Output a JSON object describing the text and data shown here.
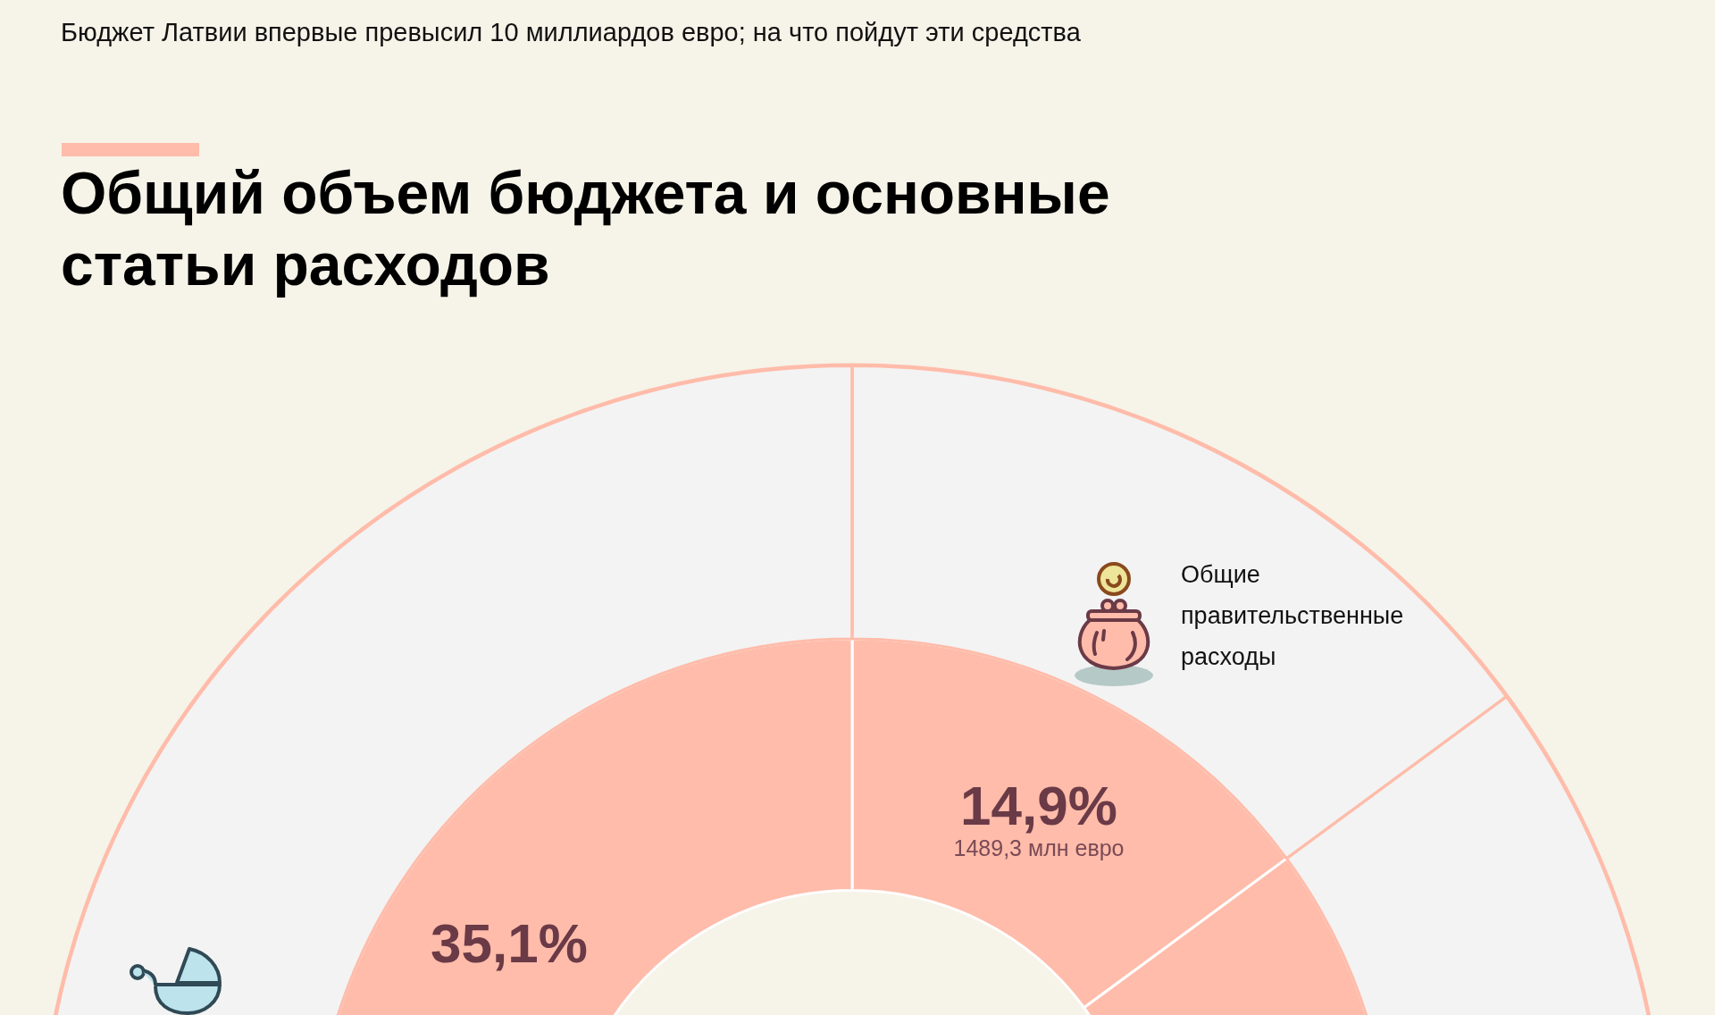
{
  "chart_data": {
    "type": "donut",
    "subtitle": "Бюджет Латвии впервые превысил 10 миллиардов евро; на что пойдут эти средства",
    "title": "Общий объем бюджета и основные статьи расходов",
    "categories": [
      "Общие правительственные расходы",
      null,
      null
    ],
    "series": [
      {
        "color": "#f3f3f3",
        "values": [
          14.9,
          50,
          35.1
        ]
      },
      {
        "color": "#ffbcaa",
        "values": [
          14.9,
          50,
          35.1
        ]
      }
    ],
    "value_labels": [
      "14,9%",
      null,
      "35,1%"
    ],
    "annotations": [
      "1489,3 млн евро"
    ]
  }
}
